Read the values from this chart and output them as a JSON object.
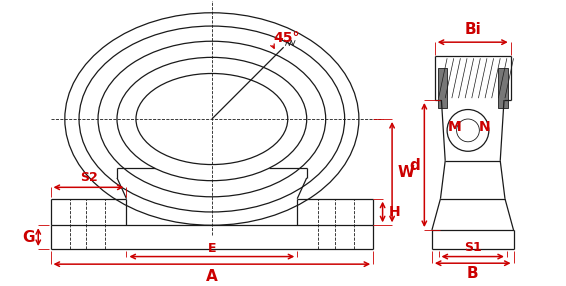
{
  "bg_color": "#ffffff",
  "line_color": "#1a1a1a",
  "dim_color": "#cc0000",
  "labels": {
    "angle": "45°",
    "W": "W",
    "H": "H",
    "E": "E",
    "A": "A",
    "S2": "S2",
    "G": "G",
    "Bi": "Bi",
    "d": "d",
    "M": "M",
    "N": "N",
    "S1": "S1",
    "B": "B"
  }
}
